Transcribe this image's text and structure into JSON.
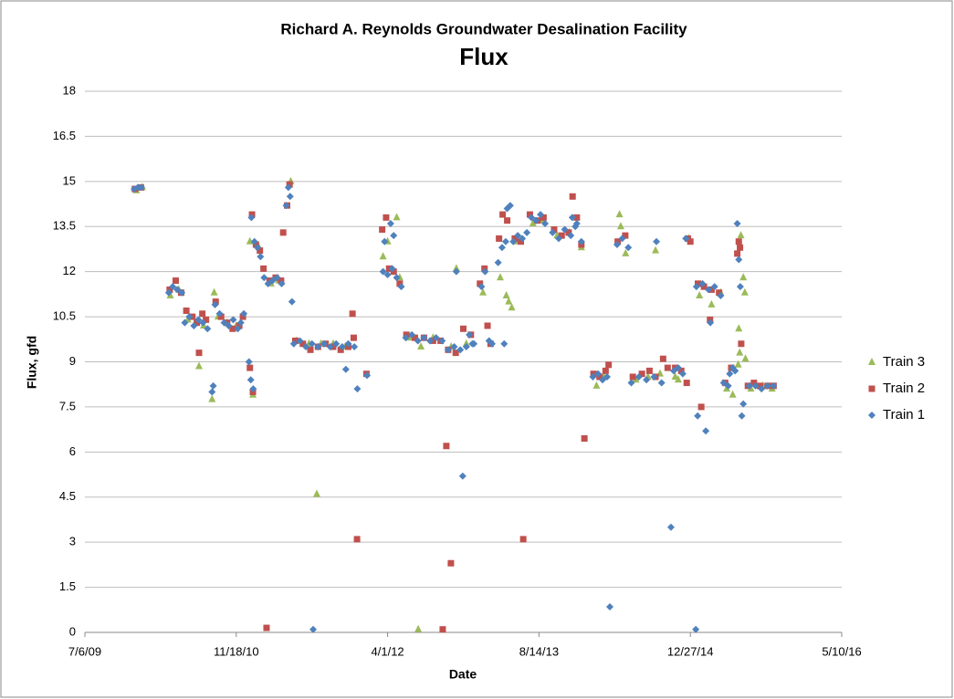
{
  "chart_data": {
    "type": "scatter",
    "title": "Richard A. Reynolds Groundwater Desalination Facility",
    "subtitle": "Flux",
    "x_label": "Date",
    "y_label": "Flux, gfd",
    "xlim": [
      40000,
      42500
    ],
    "xticks": [
      {
        "value": 40000,
        "label": "7/6/09"
      },
      {
        "value": 40500,
        "label": "11/18/10"
      },
      {
        "value": 41000,
        "label": "4/1/12"
      },
      {
        "value": 41500,
        "label": "8/14/13"
      },
      {
        "value": 42000,
        "label": "12/27/14"
      },
      {
        "value": 42500,
        "label": "5/10/16"
      }
    ],
    "ylim": [
      0,
      18
    ],
    "yticks": [
      0,
      1.5,
      3,
      4.5,
      6,
      7.5,
      9,
      10.5,
      12,
      13.5,
      15,
      16.5,
      18
    ],
    "grid": true,
    "legend": "right",
    "series": [
      {
        "name": "Train 3",
        "color": "#9bbb59",
        "marker": "triangle",
        "x": [
          40170,
          40190,
          40282,
          40310,
          40340,
          40365,
          40392,
          40377,
          40420,
          40427,
          40440,
          40470,
          40500,
          40555,
          40545,
          40575,
          40615,
          40640,
          40680,
          40700,
          40740,
          40780,
          40820,
          40860,
          40766,
          40985,
          41000,
          41030,
          41040,
          41070,
          41101,
          41110,
          41150,
          41210,
          41227,
          41260,
          41315,
          41372,
          41392,
          41400,
          41410,
          41430,
          41480,
          41510,
          41560,
          41600,
          41640,
          41690,
          41715,
          41766,
          41770,
          41786,
          41820,
          41860,
          41900,
          41950,
          41885,
          41960,
          41995,
          42030,
          42070,
          42100,
          42120,
          42140,
          42160,
          42163,
          42158,
          42167,
          42175,
          42180,
          42182,
          42200,
          42240,
          42270
        ],
        "values": [
          14.7,
          14.8,
          11.2,
          11.4,
          10.4,
          10.3,
          10.2,
          8.85,
          7.75,
          11.3,
          10.5,
          10.3,
          10.2,
          7.9,
          13.0,
          12.8,
          11.6,
          11.7,
          15.0,
          9.7,
          9.6,
          9.6,
          9.6,
          9.5,
          4.6,
          12.5,
          13.0,
          13.8,
          11.8,
          9.8,
          0.1,
          9.5,
          9.8,
          9.5,
          12.1,
          9.6,
          11.3,
          11.8,
          11.2,
          11.0,
          10.8,
          13.0,
          13.6,
          13.7,
          13.2,
          13.3,
          12.8,
          8.2,
          8.5,
          13.9,
          13.5,
          12.6,
          8.4,
          8.5,
          8.6,
          8.5,
          12.7,
          8.4,
          13.1,
          11.2,
          10.9,
          11.3,
          8.1,
          7.9,
          10.1,
          9.3,
          8.9,
          13.2,
          11.8,
          11.3,
          9.1,
          8.1,
          8.2,
          8.1
        ]
      },
      {
        "name": "Train 2",
        "color": "#c0504d",
        "marker": "square",
        "x": [
          40165,
          40185,
          40280,
          40300,
          40318,
          40335,
          40355,
          40370,
          40388,
          40400,
          40377,
          40432,
          40450,
          40470,
          40488,
          40510,
          40522,
          40545,
          40555,
          40552,
          40565,
          40578,
          40590,
          40600,
          40610,
          40630,
          40648,
          40655,
          40668,
          40676,
          40695,
          40720,
          40745,
          40770,
          40795,
          40820,
          40845,
          40870,
          40888,
          40884,
          40899,
          40930,
          40982,
          40995,
          41005,
          41020,
          41040,
          41062,
          41090,
          41120,
          41150,
          41175,
          41182,
          41194,
          41209,
          41200,
          41225,
          41250,
          41275,
          41305,
          41320,
          41330,
          41340,
          41368,
          41380,
          41395,
          41448,
          41420,
          41440,
          41470,
          41495,
          41515,
          41550,
          41575,
          41598,
          41611,
          41625,
          41640,
          41650,
          41680,
          41700,
          41720,
          41730,
          41760,
          41785,
          41810,
          41840,
          41865,
          41885,
          41910,
          41925,
          41950,
          41970,
          41988,
          41992,
          42000,
          42025,
          42045,
          42070,
          42095,
          42036,
          42065,
          42115,
          42135,
          42155,
          42160,
          42164,
          42168,
          42190,
          42210,
          42230,
          42255,
          42275
        ],
        "values": [
          14.75,
          14.8,
          11.4,
          11.7,
          11.3,
          10.7,
          10.5,
          10.3,
          10.6,
          10.4,
          9.3,
          11.0,
          10.5,
          10.3,
          10.1,
          10.2,
          10.5,
          8.8,
          8.0,
          13.9,
          12.9,
          12.7,
          12.1,
          0.15,
          11.7,
          11.8,
          11.7,
          13.3,
          14.2,
          14.9,
          9.7,
          9.6,
          9.4,
          9.5,
          9.6,
          9.5,
          9.4,
          9.5,
          9.8,
          10.6,
          3.1,
          8.6,
          13.4,
          13.8,
          12.1,
          12.0,
          11.6,
          9.9,
          9.8,
          9.8,
          9.7,
          9.7,
          0.1,
          6.2,
          2.3,
          9.4,
          9.3,
          10.1,
          9.9,
          11.6,
          12.1,
          10.2,
          9.6,
          13.1,
          13.9,
          13.7,
          3.1,
          13.1,
          13.0,
          13.9,
          13.7,
          13.8,
          13.4,
          13.2,
          13.3,
          14.5,
          13.8,
          12.9,
          6.45,
          8.6,
          8.5,
          8.7,
          8.9,
          13.0,
          13.2,
          8.5,
          8.6,
          8.7,
          8.5,
          9.1,
          8.8,
          8.8,
          8.7,
          8.3,
          13.1,
          13.0,
          11.6,
          11.5,
          11.4,
          11.3,
          7.5,
          10.4,
          8.3,
          8.8,
          12.6,
          13.0,
          12.8,
          9.6,
          8.2,
          8.3,
          8.2,
          8.2,
          8.2
        ]
      },
      {
        "name": "Train 1",
        "color": "#4f81bd",
        "marker": "diamond",
        "x": [
          40163,
          40175,
          40187,
          40277,
          40290,
          40305,
          40320,
          40330,
          40345,
          40360,
          40375,
          40390,
          40405,
          40420,
          40424,
          40430,
          40445,
          40460,
          40475,
          40490,
          40505,
          40515,
          40525,
          40542,
          40548,
          40556,
          40550,
          40560,
          40570,
          40580,
          40592,
          40605,
          40620,
          40635,
          40650,
          40665,
          40672,
          40678,
          40684,
          40690,
          40710,
          40730,
          40750,
          40770,
          40790,
          40810,
          40830,
          40850,
          40870,
          40890,
          40754,
          40862,
          40900,
          40932,
          40985,
          41000,
          41015,
          41030,
          41045,
          40990,
          41010,
          41020,
          41060,
          41080,
          41100,
          41120,
          41140,
          41160,
          41180,
          41200,
          41220,
          41240,
          41260,
          41280,
          41227,
          41248,
          41270,
          41285,
          41310,
          41322,
          41335,
          41345,
          41365,
          41378,
          41390,
          41385,
          41395,
          41405,
          41415,
          41430,
          41445,
          41460,
          41475,
          41490,
          41505,
          41520,
          41545,
          41565,
          41585,
          41605,
          41620,
          41610,
          41625,
          41640,
          41678,
          41695,
          41710,
          41725,
          41734,
          41758,
          41775,
          41795,
          41805,
          41830,
          41855,
          41880,
          41905,
          41888,
          41936,
          41945,
          41960,
          41975,
          41985,
          42020,
          42040,
          42060,
          42080,
          42100,
          42018,
          42024,
          42051,
          42066,
          42110,
          42125,
          42130,
          42140,
          42148,
          42155,
          42160,
          42165,
          42170,
          42175,
          42195,
          42215,
          42235,
          42255,
          42275
        ],
        "values": [
          14.75,
          14.8,
          14.8,
          11.3,
          11.5,
          11.4,
          11.3,
          10.3,
          10.5,
          10.2,
          10.4,
          10.3,
          10.1,
          8.0,
          8.2,
          10.9,
          10.6,
          10.3,
          10.2,
          10.4,
          10.1,
          10.3,
          10.6,
          9.0,
          8.4,
          8.1,
          13.8,
          13.0,
          12.8,
          12.5,
          11.8,
          11.6,
          11.7,
          11.8,
          11.6,
          14.2,
          14.8,
          14.5,
          11.0,
          9.6,
          9.7,
          9.5,
          9.6,
          9.5,
          9.6,
          9.5,
          9.6,
          9.5,
          9.6,
          9.5,
          0.1,
          8.75,
          8.1,
          8.55,
          12.0,
          11.9,
          12.1,
          11.8,
          11.5,
          13.0,
          13.6,
          13.2,
          9.8,
          9.9,
          9.7,
          9.8,
          9.7,
          9.8,
          9.7,
          9.4,
          9.5,
          9.4,
          9.5,
          9.6,
          12.0,
          5.2,
          9.9,
          9.6,
          11.5,
          12.0,
          9.7,
          9.6,
          12.3,
          12.8,
          13.0,
          9.6,
          14.1,
          14.2,
          13.0,
          13.2,
          13.1,
          13.3,
          13.8,
          13.7,
          13.9,
          13.6,
          13.3,
          13.1,
          13.4,
          13.2,
          13.5,
          13.8,
          13.6,
          13.0,
          8.5,
          8.6,
          8.4,
          8.5,
          0.85,
          12.9,
          13.1,
          12.8,
          8.3,
          8.5,
          8.4,
          8.5,
          8.3,
          13.0,
          3.5,
          8.7,
          8.8,
          8.6,
          13.1,
          11.5,
          11.6,
          11.4,
          11.5,
          11.2,
          0.1,
          7.2,
          6.7,
          10.3,
          8.3,
          8.2,
          8.6,
          8.8,
          8.7,
          13.6,
          12.4,
          11.5,
          7.2,
          7.6,
          8.2,
          8.2,
          8.1,
          8.2,
          8.2
        ]
      }
    ]
  }
}
